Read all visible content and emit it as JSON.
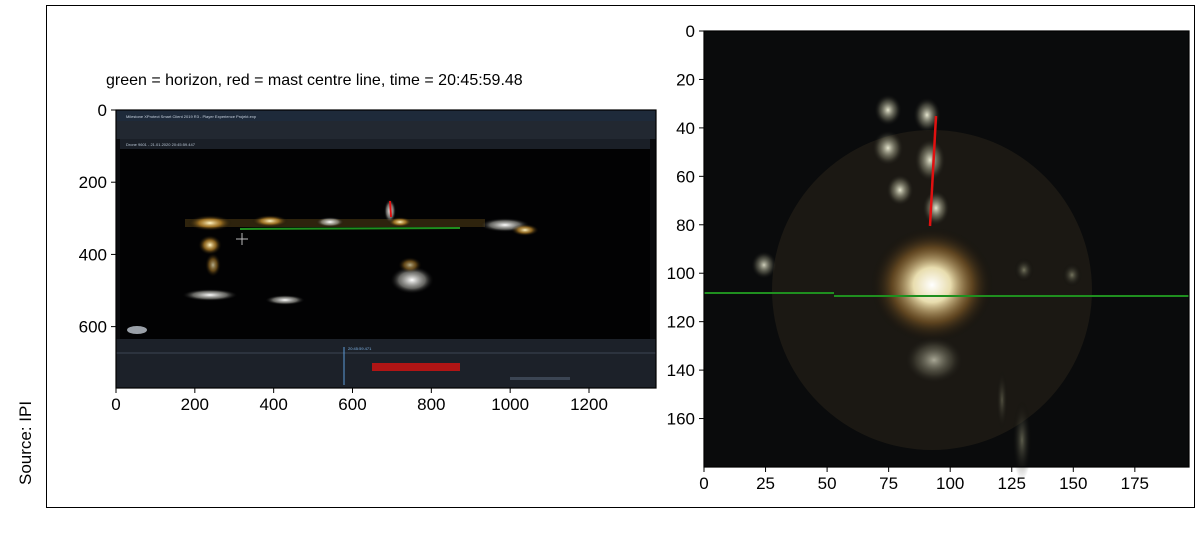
{
  "source_note": "Source: IPI",
  "caption": "green = horizon,  red = mast centre line,  time = 20:45:59.48",
  "colors": {
    "horizon": "#1f8f1f",
    "mast_line": "#e01010",
    "background": "#ffffff"
  },
  "left_plot": {
    "x_ticks": [
      "0",
      "200",
      "400",
      "600",
      "800",
      "1000",
      "1200"
    ],
    "y_ticks": [
      "0",
      "200",
      "400",
      "600"
    ],
    "xlim": [
      0,
      1370
    ],
    "ylim": [
      0,
      770
    ],
    "screenshot": {
      "title_bar": "Milestone XProtect Smart Client 2019 R3 - Player Experience Projekt.exp",
      "camera_label": "Drone 9601 - 21.01.2020 20:45:59.447",
      "timeline_time": "20:45:59.471"
    }
  },
  "right_plot": {
    "x_ticks": [
      "0",
      "25",
      "50",
      "75",
      "100",
      "125",
      "150",
      "175"
    ],
    "y_ticks": [
      "0",
      "20",
      "40",
      "60",
      "80",
      "100",
      "120",
      "140",
      "160"
    ],
    "xlim": [
      0,
      197
    ],
    "ylim": [
      0,
      180
    ]
  }
}
